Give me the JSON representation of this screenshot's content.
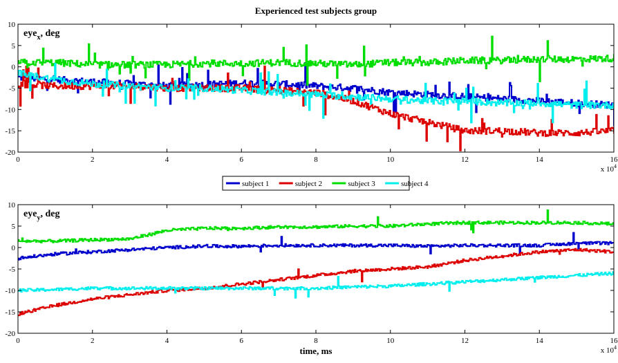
{
  "chart_data": [
    {
      "type": "line",
      "title": "Experienced test subjects group",
      "ylabel": {
        "main": "eye",
        "sub": "x",
        "rest": ", deg"
      },
      "xlabel": "",
      "x_multiplier": {
        "base": "x 10",
        "exp": "4"
      },
      "xlim": [
        0,
        16
      ],
      "ylim": [
        -20,
        10
      ],
      "xticks": [
        0,
        2,
        4,
        6,
        8,
        10,
        12,
        14,
        16
      ],
      "yticks": [
        -20,
        -15,
        -10,
        -5,
        0,
        5,
        10
      ],
      "grid": false,
      "series": [
        {
          "name": "subject 1",
          "color": "#0000cc",
          "x": [
            0,
            1,
            2,
            3,
            4,
            5,
            6,
            7,
            8,
            9,
            10,
            11,
            12,
            13,
            14,
            15,
            16
          ],
          "y": [
            -2.5,
            -3,
            -3.5,
            -4,
            -4.5,
            -4.2,
            -3.8,
            -4,
            -4.5,
            -5,
            -6,
            -6.5,
            -7,
            -7.5,
            -8,
            -8.5,
            -9
          ]
        },
        {
          "name": "subject 2",
          "color": "#dd0000",
          "x": [
            0,
            1,
            2,
            3,
            4,
            5,
            6,
            7,
            8,
            9,
            10,
            11,
            12,
            13,
            14,
            15,
            16
          ],
          "y": [
            -4,
            -4.5,
            -4.5,
            -4.5,
            -5,
            -5,
            -5,
            -5.5,
            -6,
            -8,
            -11,
            -13,
            -15,
            -15,
            -15.5,
            -15.5,
            -15
          ]
        },
        {
          "name": "subject 3",
          "color": "#00dd00",
          "x": [
            0,
            1,
            2,
            3,
            4,
            5,
            6,
            7,
            8,
            9,
            10,
            11,
            12,
            13,
            14,
            15,
            16
          ],
          "y": [
            1,
            1,
            0.5,
            0.5,
            0.5,
            0.8,
            0.8,
            1,
            0.8,
            0.5,
            1,
            1,
            1.5,
            1.5,
            1.8,
            1.8,
            2
          ]
        },
        {
          "name": "subject 4",
          "color": "#00eeee",
          "x": [
            0,
            1,
            2,
            3,
            4,
            5,
            6,
            7,
            8,
            9,
            10,
            11,
            12,
            13,
            14,
            15,
            16
          ],
          "y": [
            -1.5,
            -3,
            -4,
            -4.5,
            -5,
            -5,
            -5.5,
            -6,
            -6.5,
            -7,
            -7.5,
            -8,
            -8,
            -8.5,
            -8.5,
            -9,
            -9
          ]
        }
      ]
    },
    {
      "type": "line",
      "title": "",
      "ylabel": {
        "main": "eye",
        "sub": "y",
        "rest": ", deg"
      },
      "xlabel": "time, ms",
      "x_multiplier": {
        "base": "x 10",
        "exp": "4"
      },
      "xlim": [
        0,
        16
      ],
      "ylim": [
        -20,
        10
      ],
      "xticks": [
        0,
        2,
        4,
        6,
        8,
        10,
        12,
        14,
        16
      ],
      "yticks": [
        -20,
        -15,
        -10,
        -5,
        0,
        5,
        10
      ],
      "grid": false,
      "series": [
        {
          "name": "subject 1",
          "color": "#0000cc",
          "x": [
            0,
            1,
            2,
            3,
            4,
            5,
            6,
            7,
            8,
            9,
            10,
            11,
            12,
            13,
            14,
            15,
            16
          ],
          "y": [
            -2.5,
            -1.5,
            -1,
            -0.5,
            0,
            0.3,
            0.3,
            0.5,
            0.5,
            0.5,
            0.5,
            0.3,
            0.5,
            0.5,
            0.5,
            1,
            1
          ]
        },
        {
          "name": "subject 2",
          "color": "#dd0000",
          "x": [
            0,
            1,
            2,
            3,
            4,
            5,
            6,
            7,
            8,
            9,
            10,
            11,
            12,
            13,
            14,
            15,
            16
          ],
          "y": [
            -15.5,
            -13.5,
            -12,
            -11,
            -10,
            -9.5,
            -8.5,
            -7.5,
            -6.5,
            -5.5,
            -5,
            -4.5,
            -3,
            -2,
            -1,
            -0.5,
            -1
          ]
        },
        {
          "name": "subject 3",
          "color": "#00dd00",
          "x": [
            0,
            1,
            2,
            3,
            4,
            5,
            6,
            7,
            8,
            9,
            10,
            11,
            12,
            13,
            14,
            15,
            16
          ],
          "y": [
            1.5,
            1.5,
            1.8,
            2,
            4,
            4.5,
            4.5,
            4.8,
            4.8,
            5,
            5,
            5.5,
            5.8,
            5.8,
            5.8,
            5.8,
            5.5
          ]
        },
        {
          "name": "subject 4",
          "color": "#00eeee",
          "x": [
            0,
            1,
            2,
            3,
            4,
            5,
            6,
            7,
            8,
            9,
            10,
            11,
            12,
            13,
            14,
            15,
            16
          ],
          "y": [
            -10,
            -9.8,
            -9.5,
            -9.5,
            -9.5,
            -9.5,
            -9.5,
            -9.5,
            -9.5,
            -9.2,
            -9,
            -8.5,
            -8,
            -7.5,
            -7,
            -6.5,
            -6
          ]
        }
      ]
    }
  ],
  "legend": {
    "placement": "between-plots-center",
    "entries": [
      "subject 1",
      "subject 2",
      "subject 3",
      "subject 4"
    ]
  }
}
